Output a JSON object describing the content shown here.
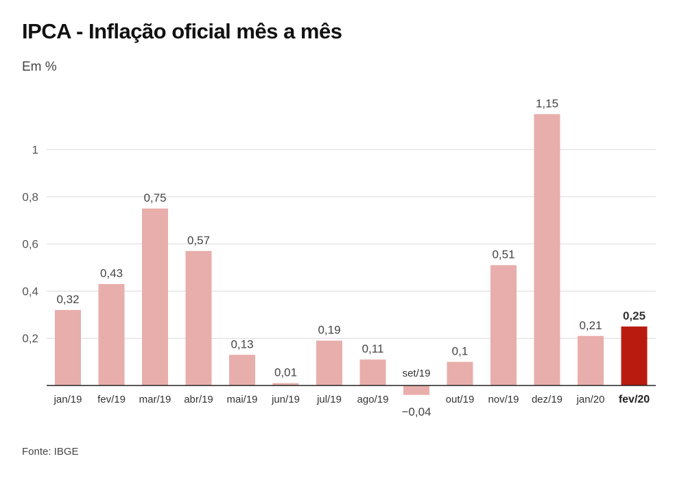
{
  "header": {
    "title": "IPCA - Inflação oficial mês a mês",
    "subtitle": "Em %"
  },
  "footer": {
    "source": "Fonte: IBGE"
  },
  "colors": {
    "bar": "#e8aeab",
    "highlight": "#b91c0f",
    "grid": "#d9d9d9",
    "axis": "#222222"
  },
  "chart_data": {
    "type": "bar",
    "title": "IPCA - Inflação oficial mês a mês",
    "ylabel": "Em %",
    "xlabel": "",
    "ylim": [
      -0.05,
      1.18
    ],
    "yticks": [
      0.2,
      0.4,
      0.6,
      0.8,
      1
    ],
    "ytick_labels": [
      "0,2",
      "0,4",
      "0,6",
      "0,8",
      "1"
    ],
    "grid": true,
    "categories": [
      "jan/19",
      "fev/19",
      "mar/19",
      "abr/19",
      "mai/19",
      "jun/19",
      "jul/19",
      "ago/19",
      "set/19",
      "out/19",
      "nov/19",
      "dez/19",
      "jan/20",
      "fev/20"
    ],
    "values": [
      0.32,
      0.43,
      0.75,
      0.57,
      0.13,
      0.01,
      0.19,
      0.11,
      -0.04,
      0.1,
      0.51,
      1.15,
      0.21,
      0.25
    ],
    "value_labels": [
      "0,32",
      "0,43",
      "0,75",
      "0,57",
      "0,13",
      "0,01",
      "0,19",
      "0,11",
      "−0,04",
      "0,1",
      "0,51",
      "1,15",
      "0,21",
      "0,25"
    ],
    "highlight_index": 13
  }
}
